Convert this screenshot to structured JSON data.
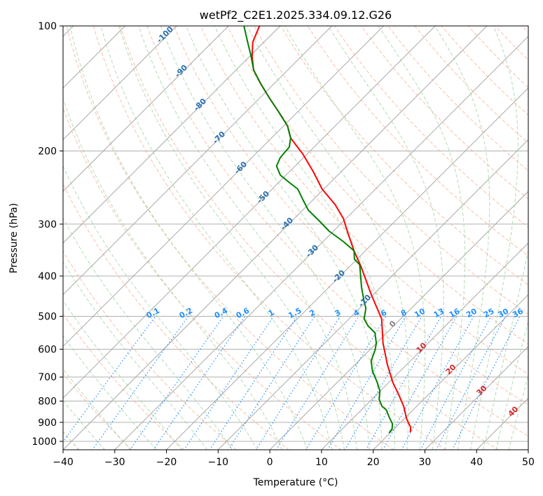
{
  "chart_data": {
    "type": "line",
    "subtype": "skew-T log-p",
    "title": "wetPf2_C2E1.2025.334.09.12.G26",
    "xlabel": "Temperature (°C)",
    "ylabel": "Pressure (hPa)",
    "xlim": [
      -40,
      50
    ],
    "ylim": [
      1048,
      100
    ],
    "x_ticks": [
      "−40",
      "−30",
      "−20",
      "−10",
      "0",
      "10",
      "20",
      "30",
      "40",
      "50"
    ],
    "x_tick_values": [
      -40,
      -30,
      -20,
      -10,
      0,
      10,
      20,
      30,
      40,
      50
    ],
    "y_ticks": [
      "100",
      "200",
      "300",
      "400",
      "500",
      "600",
      "700",
      "800",
      "900",
      "1000"
    ],
    "y_tick_values": [
      100,
      200,
      300,
      400,
      500,
      600,
      700,
      800,
      900,
      1000
    ],
    "grid": true,
    "series": [
      {
        "name": "Temperature",
        "color": "#ff0000",
        "points": [
          [
            100,
            -84.0
          ],
          [
            109.3,
            -82.2
          ],
          [
            118.2,
            -79.6
          ],
          [
            127.7,
            -76.6
          ],
          [
            138.0,
            -72.5
          ],
          [
            149.2,
            -68.1
          ],
          [
            161.2,
            -63.6
          ],
          [
            174.2,
            -59.2
          ],
          [
            186.1,
            -56.3
          ],
          [
            203.5,
            -50.8
          ],
          [
            224.3,
            -45.4
          ],
          [
            247.1,
            -40.3
          ],
          [
            269.2,
            -34.8
          ],
          [
            290.9,
            -30.5
          ],
          [
            318.1,
            -26.4
          ],
          [
            347.8,
            -22.2
          ],
          [
            378.8,
            -17.9
          ],
          [
            442.4,
            -10.5
          ],
          [
            507.0,
            -3.7
          ],
          [
            580.6,
            1.3
          ],
          [
            652.5,
            6.2
          ],
          [
            719.0,
            10.6
          ],
          [
            777.0,
            14.6
          ],
          [
            823.6,
            17.5
          ],
          [
            883.1,
            20.5
          ],
          [
            925.2,
            22.9
          ],
          [
            950.6,
            23.8
          ]
        ]
      },
      {
        "name": "Dewpoint",
        "color": "#008000",
        "points": [
          [
            100,
            -87.0
          ],
          [
            109.3,
            -83.2
          ],
          [
            118.2,
            -79.8
          ],
          [
            127.7,
            -76.6
          ],
          [
            138.0,
            -72.5
          ],
          [
            149.2,
            -68.1
          ],
          [
            161.2,
            -63.6
          ],
          [
            174.2,
            -59.2
          ],
          [
            186.1,
            -56.3
          ],
          [
            195.7,
            -54.8
          ],
          [
            207.5,
            -54.5
          ],
          [
            217.4,
            -53.6
          ],
          [
            228.7,
            -51.1
          ],
          [
            237.7,
            -48.1
          ],
          [
            247.1,
            -45.0
          ],
          [
            261.9,
            -42.0
          ],
          [
            277.7,
            -38.9
          ],
          [
            294.3,
            -34.8
          ],
          [
            312.0,
            -30.8
          ],
          [
            330.7,
            -26.0
          ],
          [
            347.8,
            -22.2
          ],
          [
            364.4,
            -20.5
          ],
          [
            375.8,
            -18.4
          ],
          [
            401.6,
            -15.9
          ],
          [
            425.6,
            -13.7
          ],
          [
            460.0,
            -10.5
          ],
          [
            478.2,
            -8.8
          ],
          [
            507.0,
            -7.1
          ],
          [
            526.9,
            -5.0
          ],
          [
            547.7,
            -2.3
          ],
          [
            580.6,
            0.0
          ],
          [
            603.6,
            1.1
          ],
          [
            640.1,
            2.4
          ],
          [
            678.5,
            4.7
          ],
          [
            719.0,
            7.6
          ],
          [
            755.9,
            9.9
          ],
          [
            792.2,
            11.4
          ],
          [
            823.6,
            13.3
          ],
          [
            839.7,
            14.8
          ],
          [
            873.0,
            16.7
          ],
          [
            907.5,
            18.7
          ],
          [
            932.4,
            19.6
          ],
          [
            954.6,
            19.8
          ]
        ]
      }
    ],
    "mixing_ratio_labels": [
      "0.1",
      "0.2",
      "0.4",
      "0.6",
      "1",
      "1.5",
      "2",
      "3",
      "4",
      "6",
      "8",
      "10",
      "13",
      "16",
      "20",
      "25",
      "30",
      "36"
    ],
    "mixing_ratio_values": [
      0.1,
      0.2,
      0.4,
      0.6,
      1,
      1.5,
      2,
      3,
      4,
      6,
      8,
      10,
      13,
      16,
      20,
      25,
      30,
      36
    ],
    "isotherm_labels": [
      "-100",
      "-90",
      "-80",
      "-70",
      "-60",
      "-50",
      "-40",
      "-30",
      "-20",
      "-10",
      "0",
      "10",
      "20",
      "30",
      "40"
    ],
    "colors": {
      "temperature": "#ff0000",
      "dewpoint": "#008000",
      "isotherm": "#a0a0a0",
      "dry_adiabat": "#f4a582",
      "moist_adiabat": "#9fd39f",
      "mixing_ratio": "#1e90ff",
      "label_negative": "#2a6fb0",
      "label_zero": "#808080",
      "label_positive": "#d62728"
    }
  }
}
